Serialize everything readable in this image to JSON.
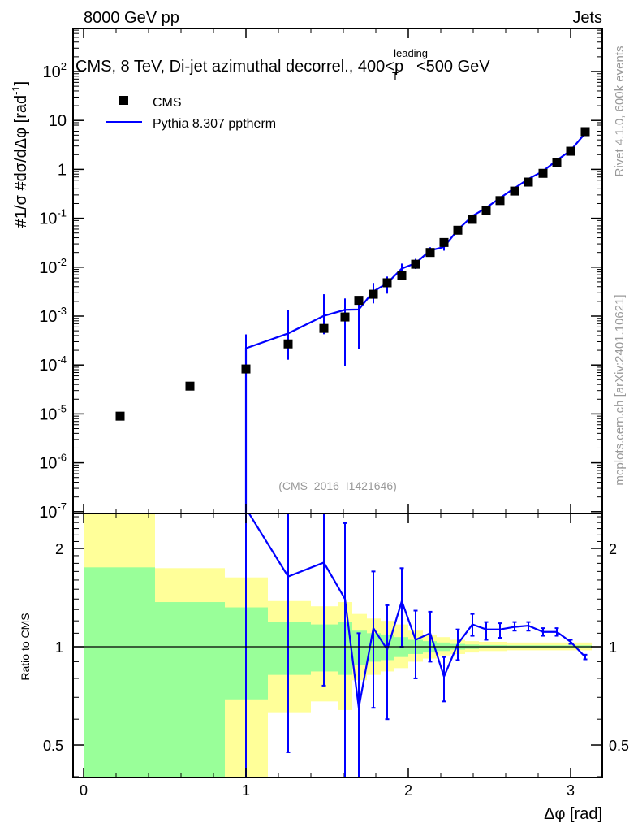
{
  "header": {
    "left": "8000 GeV pp",
    "right": "Jets"
  },
  "side_labels": {
    "rivet": "Rivet 4.1.0,  600k events",
    "mcplots": "mcplots.cern.ch [arXiv:2401.10621]"
  },
  "analysis_id": "(CMS_2016_I1421646)",
  "chart_data": {
    "type": "scatter",
    "title": "CMS, 8 TeV, Di-jet azimuthal decorrel., 400<p",
    "title_sup": "leading",
    "title_sub": "T",
    "title_end": "<500 GeV",
    "xlabel": "Δφ [rad]",
    "ylabel": "#1/σ #dσ/dΔφ [rad",
    "ylabel_sup": "-1",
    "ylabel_end": "]",
    "ratio_ylabel": "Ratio to CMS",
    "xlim": [
      -0.065,
      3.195
    ],
    "ylim": [
      1e-07,
      760
    ],
    "yscale": "log",
    "ratio_ylim": [
      0.4,
      2.56
    ],
    "ratio_yscale": "log",
    "x_ticks": [
      "0",
      "1",
      "2",
      "3"
    ],
    "y_ticks": [
      {
        "base": "10",
        "exp": "2",
        "v": 100
      },
      {
        "base": "10",
        "exp": "",
        "v": 10
      },
      {
        "base": "1",
        "exp": "",
        "v": 1
      },
      {
        "base": "10",
        "exp": "-1",
        "v": 0.1
      },
      {
        "base": "10",
        "exp": "-2",
        "v": 0.01
      },
      {
        "base": "10",
        "exp": "-3",
        "v": 0.001
      },
      {
        "base": "10",
        "exp": "-4",
        "v": 0.0001
      },
      {
        "base": "10",
        "exp": "-5",
        "v": 1e-05
      },
      {
        "base": "10",
        "exp": "-6",
        "v": 1e-06
      },
      {
        "base": "10",
        "exp": "-7",
        "v": 1e-07
      }
    ],
    "ratio_ticks": [
      {
        "label": "2",
        "v": 2
      },
      {
        "label": "1",
        "v": 1
      },
      {
        "label": "0.5",
        "v": 0.5
      }
    ],
    "legend": {
      "position": "top-left",
      "entries": [
        {
          "name": "CMS",
          "style": "black-square"
        },
        {
          "name": "Pythia 8.307 pptherm",
          "style": "blue-line"
        }
      ]
    },
    "colors": {
      "data": "#000000",
      "mc": "#0000ff",
      "band_total": "#ffff99",
      "band_stat": "#99ff99"
    },
    "x": [
      0.225,
      0.655,
      1.0,
      1.26,
      1.48,
      1.61,
      1.695,
      1.785,
      1.87,
      1.96,
      2.045,
      2.135,
      2.22,
      2.305,
      2.395,
      2.48,
      2.565,
      2.655,
      2.74,
      2.83,
      2.915,
      3.0,
      3.09
    ],
    "series": [
      {
        "name": "CMS",
        "values": [
          9e-06,
          3.7e-05,
          8.3e-05,
          0.00027,
          0.00056,
          0.00096,
          0.0021,
          0.0028,
          0.0048,
          0.0068,
          0.0115,
          0.02,
          0.032,
          0.057,
          0.095,
          0.145,
          0.23,
          0.36,
          0.55,
          0.83,
          1.38,
          2.35,
          5.9
        ]
      },
      {
        "name": "Pythia 8.307 pptherm",
        "ratio": [
          null,
          null,
          2.65,
          1.64,
          1.81,
          1.4,
          0.65,
          1.14,
          0.98,
          1.38,
          1.05,
          1.1,
          0.81,
          1.02,
          1.17,
          1.13,
          1.13,
          1.15,
          1.16,
          1.11,
          1.11,
          1.035,
          0.93
        ],
        "ratio_err_lo": [
          null,
          null,
          0.001,
          0.475,
          0.76,
          0.1,
          0.1,
          0.65,
          0.6,
          1.0,
          0.8,
          0.9,
          0.68,
          0.91,
          1.08,
          1.05,
          1.065,
          1.12,
          1.12,
          1.08,
          1.08,
          1.02,
          0.915
        ],
        "ratio_err_hi": [
          null,
          null,
          5.1,
          5,
          5,
          2.39,
          1.1,
          1.7,
          1.34,
          1.74,
          1.29,
          1.28,
          0.93,
          1.13,
          1.26,
          1.19,
          1.18,
          1.19,
          1.19,
          1.14,
          1.14,
          1.05,
          0.945
        ]
      }
    ],
    "bands": {
      "edges": [
        0,
        0.44,
        0.87,
        1.135,
        1.4,
        1.565,
        1.655,
        1.745,
        1.83,
        1.915,
        2.0,
        2.09,
        2.175,
        2.26,
        2.35,
        2.435,
        2.52,
        2.61,
        2.695,
        2.785,
        2.87,
        2.955,
        3.045,
        3.13
      ],
      "total_hi": [
        5,
        1.74,
        1.63,
        1.38,
        1.33,
        1.37,
        1.26,
        1.22,
        1.2,
        1.17,
        1.12,
        1.09,
        1.07,
        1.05,
        1.04,
        1.035,
        1.035,
        1.03,
        1.03,
        1.03,
        1.03,
        1.03,
        1.03
      ],
      "total_lo": [
        0.1,
        0.63,
        0.1,
        0.63,
        0.68,
        0.64,
        0.79,
        0.82,
        0.84,
        0.86,
        0.9,
        0.92,
        0.94,
        0.95,
        0.96,
        0.97,
        0.97,
        0.975,
        0.975,
        0.975,
        0.975,
        0.975,
        0.975
      ],
      "stat_hi": [
        1.75,
        1.37,
        1.32,
        1.19,
        1.17,
        1.19,
        1.12,
        1.1,
        1.09,
        1.07,
        1.05,
        1.04,
        1.03,
        1.02,
        1.015,
        1.012,
        1.012,
        1.01,
        1.01,
        1.01,
        1.01,
        1.01,
        1.01
      ],
      "stat_lo": [
        0.1,
        0.1,
        0.69,
        0.82,
        0.84,
        0.82,
        0.88,
        0.9,
        0.91,
        0.93,
        0.95,
        0.96,
        0.97,
        0.98,
        0.985,
        0.99,
        0.99,
        0.99,
        0.99,
        0.99,
        0.99,
        0.99,
        0.99
      ]
    }
  }
}
